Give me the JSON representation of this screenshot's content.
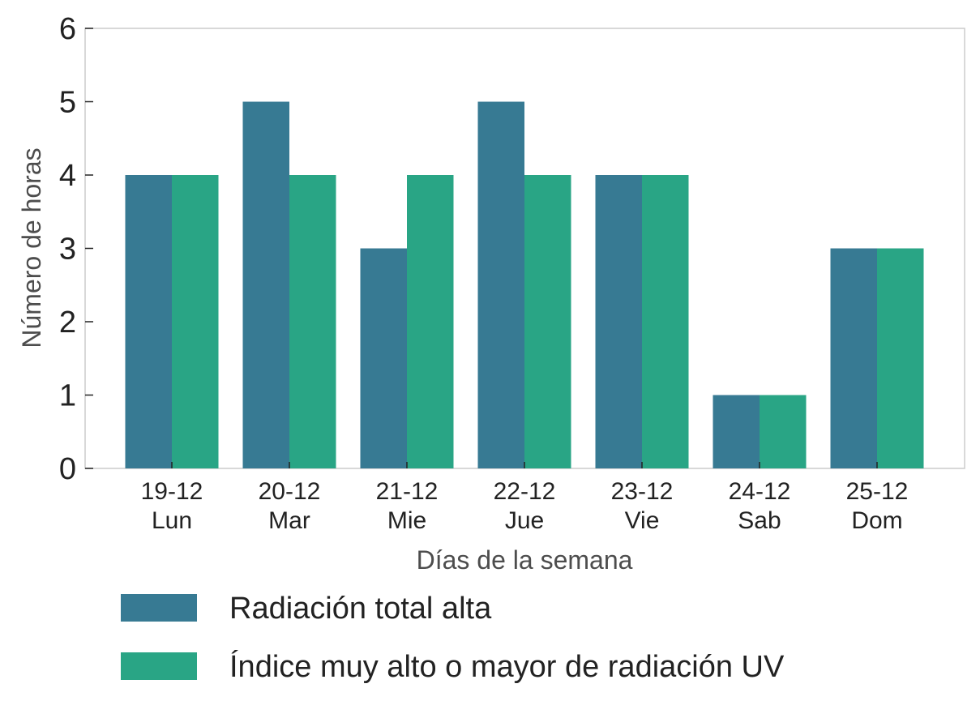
{
  "chart_data": {
    "type": "bar",
    "categories": [
      [
        "19-12",
        "Lun"
      ],
      [
        "20-12",
        "Mar"
      ],
      [
        "21-12",
        "Mie"
      ],
      [
        "22-12",
        "Jue"
      ],
      [
        "23-12",
        "Vie"
      ],
      [
        "24-12",
        "Sab"
      ],
      [
        "25-12",
        "Dom"
      ]
    ],
    "series": [
      {
        "name": "Radiación total alta",
        "color": "#377a93",
        "values": [
          4,
          5,
          3,
          5,
          4,
          1,
          3
        ]
      },
      {
        "name": "Índice muy alto o mayor de radiación UV",
        "color": "#29a585",
        "values": [
          4,
          4,
          4,
          4,
          4,
          1,
          3
        ]
      }
    ],
    "title": "",
    "xlabel": "Días de la semana",
    "ylabel": "Número de horas",
    "ylim": [
      0,
      6
    ],
    "yticks": [
      0,
      1,
      2,
      3,
      4,
      5,
      6
    ],
    "grid": false,
    "legend_position": "bottom"
  }
}
